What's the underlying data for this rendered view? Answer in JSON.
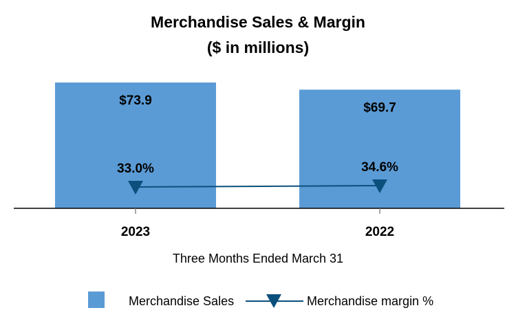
{
  "chart_data": {
    "type": "bar",
    "title": "Merchandise Sales & Margin",
    "subtitle": "($ in millions)",
    "categories": [
      "2023",
      "2022"
    ],
    "xlabel": "Three Months Ended March 31",
    "ylabel": "",
    "ylim": [
      0,
      80
    ],
    "series": [
      {
        "name": "Merchandise Sales",
        "type": "bar",
        "values": [
          73.9,
          69.7
        ],
        "labels": [
          "$73.9",
          "$69.7"
        ],
        "color": "#5b9bd5"
      },
      {
        "name": "Merchandise margin %",
        "type": "line",
        "marker": "triangle-down",
        "values": [
          33.0,
          34.6
        ],
        "labels": [
          "33.0%",
          "34.6%"
        ],
        "color": "#0b4f7c"
      }
    ],
    "legend_position": "bottom",
    "grid": false
  }
}
